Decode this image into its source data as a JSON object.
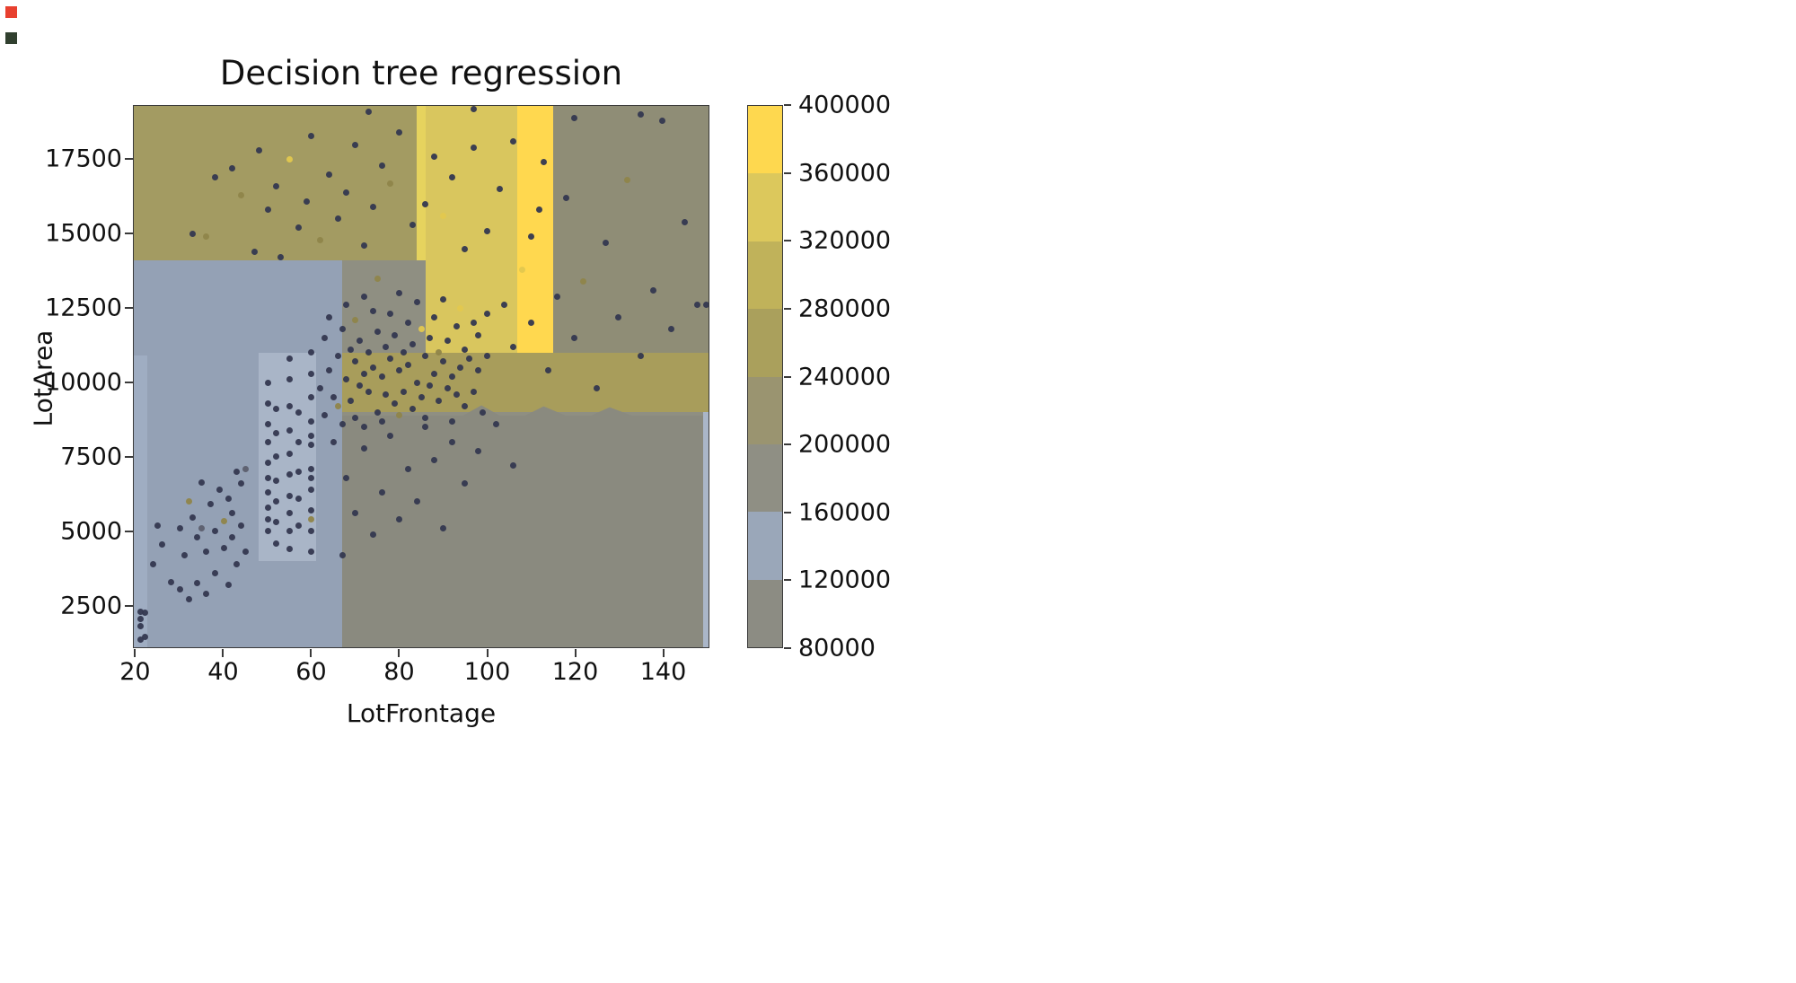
{
  "screen_artifacts": {
    "red_color": "#e8402f",
    "dark_color": "#31402f"
  },
  "chart_data": {
    "type": "scatter",
    "title": "Decision tree regression",
    "xlabel": "LotFrontage",
    "ylabel": "LotArea",
    "xlim": [
      19.5,
      150.5
    ],
    "ylim": [
      1100,
      19300
    ],
    "x_ticks": [
      20,
      40,
      60,
      80,
      100,
      120,
      140
    ],
    "y_ticks": [
      2500,
      5000,
      7500,
      10000,
      12500,
      15000,
      17500
    ],
    "grid": false,
    "legend": "none",
    "background_regions": [
      {
        "name": "base-gray",
        "x0": 19.5,
        "x1": 150.5,
        "y0": 1100,
        "y1": 19300,
        "color": "#8f8f82"
      },
      {
        "name": "top-olive",
        "x0": 19.5,
        "x1": 84,
        "y0": 14100,
        "y1": 19300,
        "color": "#a39b62"
      },
      {
        "name": "pale-yellow-line",
        "x0": 84,
        "x1": 86,
        "y0": 14100,
        "y1": 19300,
        "color": "#e6d35e"
      },
      {
        "name": "pale-yellow-col",
        "x0": 86,
        "x1": 107,
        "y0": 11000,
        "y1": 19300,
        "color": "#d9c65e"
      },
      {
        "name": "bright-yellow-col",
        "x0": 107,
        "x1": 115,
        "y0": 11000,
        "y1": 19300,
        "color": "#ffd84f"
      },
      {
        "name": "right-gray",
        "x0": 115,
        "x1": 150.5,
        "y0": 11000,
        "y1": 19300,
        "color": "#8f8d76"
      },
      {
        "name": "olive-band",
        "x0": 67,
        "x1": 150.5,
        "y0": 9000,
        "y1": 11000,
        "color": "#a89d5b"
      },
      {
        "name": "left-blue",
        "x0": 19.5,
        "x1": 67,
        "y0": 1100,
        "y1": 14100,
        "color": "#94a1b5"
      },
      {
        "name": "light-blue-strip",
        "x0": 48,
        "x1": 61,
        "y0": 4000,
        "y1": 11000,
        "color": "#a9b5c7"
      },
      {
        "name": "left-sliver",
        "x0": 19.5,
        "x1": 22.5,
        "y0": 1100,
        "y1": 10900,
        "color": "#9fadc2"
      },
      {
        "name": "bottom-gray",
        "x0": 67,
        "x1": 150.5,
        "y0": 1100,
        "y1": 9300,
        "color": "#8a8a7f",
        "texture": "dots",
        "jagged": true
      },
      {
        "name": "right-sliver",
        "x0": 149.3,
        "x1": 150.5,
        "y0": 1100,
        "y1": 9000,
        "color": "#aab6c8"
      }
    ],
    "colorbar": {
      "ticks": [
        80000,
        120000,
        160000,
        200000,
        240000,
        280000,
        320000,
        360000,
        400000
      ],
      "vmin": 80000,
      "vmax": 400000,
      "segments": [
        {
          "from": 80000,
          "to": 120000,
          "color": "#8c8c83",
          "texture": "dots"
        },
        {
          "from": 120000,
          "to": 160000,
          "color": "#9aa7b9"
        },
        {
          "from": 160000,
          "to": 200000,
          "color": "#8f8f84"
        },
        {
          "from": 200000,
          "to": 240000,
          "color": "#9a9470"
        },
        {
          "from": 240000,
          "to": 280000,
          "color": "#aaa05c"
        },
        {
          "from": 280000,
          "to": 320000,
          "color": "#c0b25a",
          "texture": "hatch"
        },
        {
          "from": 320000,
          "to": 360000,
          "color": "#dcc85c",
          "texture": "hatch"
        },
        {
          "from": 360000,
          "to": 400000,
          "color": "#fed84f"
        }
      ]
    },
    "point_palette": [
      "#343850",
      "#8f854a",
      "#e3c84e",
      "#5c5f6e"
    ],
    "points": [
      [
        21,
        2300,
        0
      ],
      [
        21,
        2050,
        0
      ],
      [
        21,
        1800,
        0
      ],
      [
        21,
        1350,
        0
      ],
      [
        22,
        1450,
        0
      ],
      [
        22,
        2250,
        0
      ],
      [
        24,
        3900,
        0
      ],
      [
        25,
        5200,
        0
      ],
      [
        26,
        4550,
        0
      ],
      [
        28,
        3300,
        0
      ],
      [
        30,
        5100,
        0
      ],
      [
        30,
        3050,
        0
      ],
      [
        31,
        4200,
        0
      ],
      [
        32,
        6000,
        1
      ],
      [
        32,
        2700,
        0
      ],
      [
        33,
        5450,
        0
      ],
      [
        34,
        4800,
        0
      ],
      [
        34,
        3250,
        0
      ],
      [
        35,
        6650,
        0
      ],
      [
        35,
        5100,
        3
      ],
      [
        36,
        4300,
        0
      ],
      [
        36,
        2900,
        0
      ],
      [
        37,
        5900,
        0
      ],
      [
        38,
        5000,
        0
      ],
      [
        38,
        3600,
        0
      ],
      [
        39,
        6400,
        0
      ],
      [
        40,
        5350,
        1
      ],
      [
        40,
        4450,
        0
      ],
      [
        41,
        6100,
        0
      ],
      [
        41,
        3200,
        0
      ],
      [
        42,
        5600,
        0
      ],
      [
        42,
        4800,
        0
      ],
      [
        43,
        7000,
        0
      ],
      [
        43,
        3900,
        0
      ],
      [
        44,
        5200,
        0
      ],
      [
        44,
        6600,
        0
      ],
      [
        45,
        4300,
        0
      ],
      [
        45,
        7100,
        3
      ],
      [
        50,
        5000,
        0
      ],
      [
        50,
        5400,
        0
      ],
      [
        50,
        5800,
        0
      ],
      [
        50,
        6300,
        0
      ],
      [
        50,
        6800,
        0
      ],
      [
        50,
        7300,
        0
      ],
      [
        50,
        8000,
        0
      ],
      [
        50,
        8600,
        0
      ],
      [
        50,
        9300,
        0
      ],
      [
        50,
        10000,
        0
      ],
      [
        52,
        4600,
        0
      ],
      [
        52,
        5300,
        0
      ],
      [
        52,
        6000,
        0
      ],
      [
        52,
        6700,
        0
      ],
      [
        52,
        7500,
        0
      ],
      [
        52,
        8300,
        0
      ],
      [
        52,
        9100,
        0
      ],
      [
        55,
        4400,
        0
      ],
      [
        55,
        5000,
        0
      ],
      [
        55,
        5600,
        0
      ],
      [
        55,
        6200,
        0
      ],
      [
        55,
        6900,
        0
      ],
      [
        55,
        7600,
        0
      ],
      [
        55,
        8400,
        0
      ],
      [
        55,
        9200,
        0
      ],
      [
        55,
        10100,
        0
      ],
      [
        55,
        10800,
        0
      ],
      [
        57,
        5200,
        0
      ],
      [
        57,
        6100,
        0
      ],
      [
        57,
        7000,
        0
      ],
      [
        57,
        8000,
        0
      ],
      [
        57,
        9000,
        0
      ],
      [
        60,
        4300,
        0
      ],
      [
        60,
        5000,
        0
      ],
      [
        60,
        5700,
        0
      ],
      [
        60,
        6400,
        0
      ],
      [
        60,
        7100,
        0
      ],
      [
        60,
        7900,
        0
      ],
      [
        60,
        8700,
        0
      ],
      [
        60,
        9500,
        0
      ],
      [
        60,
        10300,
        0
      ],
      [
        60,
        11000,
        0
      ],
      [
        60,
        5400,
        1
      ],
      [
        60,
        6800,
        0
      ],
      [
        60,
        8200,
        0
      ],
      [
        62,
        9800,
        0
      ],
      [
        63,
        8900,
        0
      ],
      [
        63,
        11500,
        0
      ],
      [
        64,
        10400,
        0
      ],
      [
        64,
        12200,
        0
      ],
      [
        65,
        9500,
        0
      ],
      [
        65,
        8000,
        0
      ],
      [
        66,
        10900,
        0
      ],
      [
        66,
        9200,
        1
      ],
      [
        67,
        11800,
        0
      ],
      [
        67,
        8600,
        0
      ],
      [
        68,
        10100,
        0
      ],
      [
        68,
        12600,
        0
      ],
      [
        69,
        9400,
        0
      ],
      [
        69,
        11100,
        0
      ],
      [
        70,
        10700,
        0
      ],
      [
        70,
        8800,
        0
      ],
      [
        70,
        12100,
        1
      ],
      [
        71,
        9900,
        0
      ],
      [
        71,
        11400,
        0
      ],
      [
        72,
        10300,
        0
      ],
      [
        72,
        8500,
        0
      ],
      [
        72,
        12900,
        0
      ],
      [
        73,
        9700,
        0
      ],
      [
        73,
        11000,
        0
      ],
      [
        74,
        10500,
        0
      ],
      [
        74,
        12400,
        0
      ],
      [
        75,
        9000,
        0
      ],
      [
        75,
        11700,
        0
      ],
      [
        75,
        13500,
        1
      ],
      [
        76,
        10200,
        0
      ],
      [
        76,
        8700,
        0
      ],
      [
        77,
        11200,
        0
      ],
      [
        77,
        9600,
        0
      ],
      [
        78,
        10800,
        0
      ],
      [
        78,
        12300,
        0
      ],
      [
        79,
        9300,
        0
      ],
      [
        79,
        11600,
        0
      ],
      [
        80,
        10400,
        0
      ],
      [
        80,
        8900,
        1
      ],
      [
        80,
        13000,
        0
      ],
      [
        81,
        11000,
        0
      ],
      [
        81,
        9700,
        0
      ],
      [
        82,
        10600,
        0
      ],
      [
        82,
        12000,
        0
      ],
      [
        83,
        9100,
        0
      ],
      [
        83,
        11300,
        0
      ],
      [
        84,
        10000,
        0
      ],
      [
        84,
        12700,
        0
      ],
      [
        85,
        9500,
        0
      ],
      [
        85,
        11800,
        2
      ],
      [
        86,
        10900,
        0
      ],
      [
        86,
        8800,
        0
      ],
      [
        87,
        11500,
        0
      ],
      [
        87,
        9900,
        0
      ],
      [
        88,
        10300,
        0
      ],
      [
        88,
        12200,
        0
      ],
      [
        89,
        9400,
        0
      ],
      [
        89,
        11000,
        1
      ],
      [
        90,
        10700,
        0
      ],
      [
        90,
        12800,
        0
      ],
      [
        91,
        9800,
        0
      ],
      [
        91,
        11400,
        0
      ],
      [
        92,
        10200,
        0
      ],
      [
        92,
        8700,
        0
      ],
      [
        93,
        11900,
        0
      ],
      [
        93,
        9600,
        0
      ],
      [
        94,
        10500,
        0
      ],
      [
        94,
        12500,
        2
      ],
      [
        95,
        9200,
        0
      ],
      [
        95,
        11100,
        0
      ],
      [
        96,
        10800,
        0
      ],
      [
        97,
        9700,
        0
      ],
      [
        97,
        12000,
        0
      ],
      [
        98,
        10400,
        0
      ],
      [
        98,
        11600,
        0
      ],
      [
        99,
        9000,
        0
      ],
      [
        100,
        10900,
        0
      ],
      [
        100,
        12300,
        0
      ],
      [
        33,
        15000,
        0
      ],
      [
        36,
        14900,
        1
      ],
      [
        38,
        16900,
        0
      ],
      [
        42,
        17200,
        0
      ],
      [
        44,
        16300,
        1
      ],
      [
        47,
        14400,
        0
      ],
      [
        48,
        17800,
        0
      ],
      [
        50,
        15800,
        0
      ],
      [
        52,
        16600,
        0
      ],
      [
        53,
        14200,
        0
      ],
      [
        55,
        17500,
        2
      ],
      [
        57,
        15200,
        0
      ],
      [
        59,
        16100,
        0
      ],
      [
        60,
        18300,
        0
      ],
      [
        62,
        14800,
        1
      ],
      [
        64,
        17000,
        0
      ],
      [
        66,
        15500,
        0
      ],
      [
        68,
        16400,
        0
      ],
      [
        70,
        18000,
        0
      ],
      [
        72,
        14600,
        0
      ],
      [
        74,
        15900,
        0
      ],
      [
        76,
        17300,
        0
      ],
      [
        78,
        16700,
        1
      ],
      [
        80,
        18400,
        0
      ],
      [
        83,
        15300,
        0
      ],
      [
        86,
        16000,
        0
      ],
      [
        88,
        17600,
        0
      ],
      [
        90,
        15600,
        2
      ],
      [
        92,
        16900,
        0
      ],
      [
        95,
        14500,
        0
      ],
      [
        97,
        17900,
        0
      ],
      [
        100,
        15100,
        0
      ],
      [
        103,
        16500,
        0
      ],
      [
        106,
        18100,
        0
      ],
      [
        110,
        14900,
        0
      ],
      [
        113,
        17400,
        0
      ],
      [
        104,
        12600,
        0
      ],
      [
        106,
        11200,
        0
      ],
      [
        108,
        13800,
        2
      ],
      [
        110,
        12000,
        0
      ],
      [
        112,
        15800,
        0
      ],
      [
        114,
        10400,
        0
      ],
      [
        116,
        12900,
        0
      ],
      [
        118,
        16200,
        0
      ],
      [
        120,
        11500,
        0
      ],
      [
        122,
        13400,
        1
      ],
      [
        125,
        9800,
        0
      ],
      [
        127,
        14700,
        0
      ],
      [
        130,
        12200,
        0
      ],
      [
        132,
        16800,
        1
      ],
      [
        135,
        10900,
        0
      ],
      [
        138,
        13100,
        0
      ],
      [
        140,
        18800,
        0
      ],
      [
        142,
        11800,
        0
      ],
      [
        145,
        15400,
        0
      ],
      [
        148,
        12600,
        0
      ],
      [
        150,
        12600,
        0
      ],
      [
        67,
        4200,
        0
      ],
      [
        68,
        6800,
        0
      ],
      [
        70,
        5600,
        0
      ],
      [
        72,
        7800,
        0
      ],
      [
        74,
        4900,
        0
      ],
      [
        76,
        6300,
        0
      ],
      [
        78,
        8200,
        0
      ],
      [
        80,
        5400,
        0
      ],
      [
        82,
        7100,
        0
      ],
      [
        84,
        6000,
        0
      ],
      [
        86,
        8500,
        0
      ],
      [
        88,
        7400,
        0
      ],
      [
        90,
        5100,
        0
      ],
      [
        92,
        8000,
        0
      ],
      [
        95,
        6600,
        0
      ],
      [
        98,
        7700,
        0
      ],
      [
        102,
        8600,
        0
      ],
      [
        106,
        7200,
        0
      ],
      [
        73,
        19100,
        0
      ],
      [
        97,
        19200,
        0
      ],
      [
        120,
        18900,
        0
      ],
      [
        135,
        19000,
        0
      ]
    ]
  }
}
